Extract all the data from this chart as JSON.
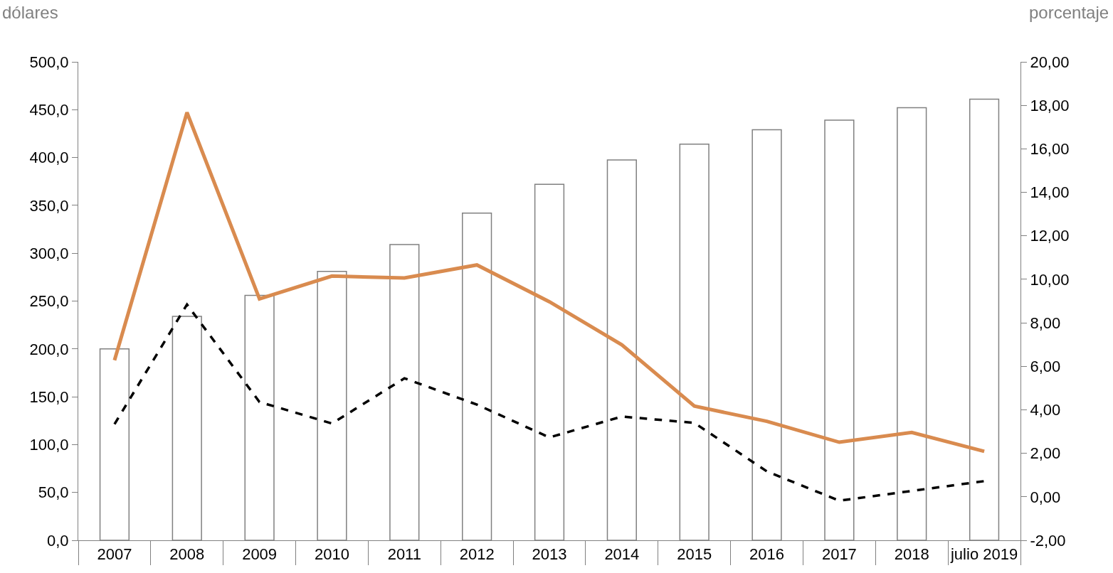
{
  "chart_data": {
    "type": "bar",
    "ylabel": "dólares",
    "y2label": "porcentaje",
    "categories": [
      "2007",
      "2008",
      "2009",
      "2010",
      "2011",
      "2012",
      "2013",
      "2014",
      "2015",
      "2016",
      "2017",
      "2018",
      "julio 2019"
    ],
    "series": [
      {
        "color": "#808080",
        "values": [
          200,
          234,
          256,
          281,
          309,
          342,
          372,
          397.5,
          414,
          429,
          439,
          452,
          461
        ]
      },
      {
        "type": "line",
        "axis": "y2",
        "color": "#d98b4f",
        "line_style": "solid",
        "values": [
          6.28,
          17.67,
          9.1,
          10.15,
          10.06,
          10.66,
          8.97,
          6.99,
          4.17,
          3.47,
          2.51,
          2.96,
          2.09
        ]
      },
      {
        "type": "line",
        "axis": "y2",
        "color": "#000000",
        "line_style": "dashed",
        "values": [
          3.34,
          8.84,
          4.36,
          3.37,
          5.45,
          4.24,
          2.73,
          3.69,
          3.4,
          1.17,
          -0.18,
          0.27,
          0.72
        ]
      }
    ],
    "ylim": [
      0,
      500
    ],
    "yticks": [
      {
        "value": 0,
        "label": "0,0"
      },
      {
        "value": 50,
        "label": "50,0"
      },
      {
        "value": 100,
        "label": "100,0"
      },
      {
        "value": 150,
        "label": "150,0"
      },
      {
        "value": 200,
        "label": "200,0"
      },
      {
        "value": 250,
        "label": "250,0"
      },
      {
        "value": 300,
        "label": "300,0"
      },
      {
        "value": 350,
        "label": "350,0"
      },
      {
        "value": 400,
        "label": "400,0"
      },
      {
        "value": 450,
        "label": "450,0"
      },
      {
        "value": 500,
        "label": "500,0"
      }
    ],
    "y2lim": [
      -2,
      20
    ],
    "y2ticks": [
      {
        "value": -2,
        "label": "-2,00"
      },
      {
        "value": 0,
        "label": "0,00"
      },
      {
        "value": 2,
        "label": "2,00"
      },
      {
        "value": 4,
        "label": "4,00"
      },
      {
        "value": 6,
        "label": "6,00"
      },
      {
        "value": 8,
        "label": "8,00"
      },
      {
        "value": 10,
        "label": "10,00"
      },
      {
        "value": 12,
        "label": "12,00"
      },
      {
        "value": 14,
        "label": "14,00"
      },
      {
        "value": 16,
        "label": "16,00"
      },
      {
        "value": 18,
        "label": "18,00"
      },
      {
        "value": 20,
        "label": "20,00"
      }
    ],
    "legend": false,
    "marker": "none"
  }
}
